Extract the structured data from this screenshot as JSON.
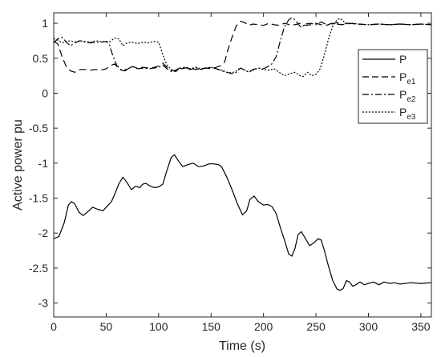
{
  "chart_data": {
    "type": "line",
    "xlabel": "Time (s)",
    "ylabel": "Active power pu",
    "xlim": [
      0,
      360
    ],
    "ylim": [
      -3.2,
      1.15
    ],
    "x_ticks": [
      0,
      50,
      100,
      150,
      200,
      250,
      300,
      350
    ],
    "y_ticks": [
      1,
      0.5,
      0,
      -0.5,
      -1,
      -1.5,
      -2,
      -2.5,
      -3
    ],
    "x_tick_labels": [
      "0",
      "50",
      "100",
      "150",
      "200",
      "250",
      "300",
      "350"
    ],
    "y_tick_labels": [
      "1",
      "0.5",
      "0",
      "-0.5",
      "-1",
      "-1.5",
      "-2",
      "-2.5",
      "-3"
    ],
    "grid": false,
    "legend_position": "top-right",
    "series": [
      {
        "name": "P",
        "style": "solid",
        "color": "#000000",
        "points": [
          [
            0,
            -2.08
          ],
          [
            5,
            -2.05
          ],
          [
            10,
            -1.85
          ],
          [
            14,
            -1.6
          ],
          [
            17,
            -1.55
          ],
          [
            20,
            -1.58
          ],
          [
            24,
            -1.7
          ],
          [
            28,
            -1.75
          ],
          [
            32,
            -1.7
          ],
          [
            37,
            -1.63
          ],
          [
            42,
            -1.66
          ],
          [
            47,
            -1.68
          ],
          [
            52,
            -1.6
          ],
          [
            55,
            -1.55
          ],
          [
            58,
            -1.45
          ],
          [
            62,
            -1.3
          ],
          [
            66,
            -1.2
          ],
          [
            70,
            -1.28
          ],
          [
            74,
            -1.38
          ],
          [
            78,
            -1.33
          ],
          [
            82,
            -1.35
          ],
          [
            85,
            -1.3
          ],
          [
            88,
            -1.29
          ],
          [
            92,
            -1.33
          ],
          [
            96,
            -1.35
          ],
          [
            100,
            -1.34
          ],
          [
            104,
            -1.3
          ],
          [
            108,
            -1.1
          ],
          [
            112,
            -0.92
          ],
          [
            115,
            -0.88
          ],
          [
            119,
            -0.97
          ],
          [
            123,
            -1.05
          ],
          [
            128,
            -1.02
          ],
          [
            133,
            -1.0
          ],
          [
            138,
            -1.05
          ],
          [
            143,
            -1.04
          ],
          [
            148,
            -1.01
          ],
          [
            152,
            -1.01
          ],
          [
            157,
            -1.02
          ],
          [
            160,
            -1.05
          ],
          [
            165,
            -1.2
          ],
          [
            170,
            -1.38
          ],
          [
            175,
            -1.58
          ],
          [
            180,
            -1.74
          ],
          [
            184,
            -1.68
          ],
          [
            187,
            -1.52
          ],
          [
            191,
            -1.47
          ],
          [
            195,
            -1.55
          ],
          [
            200,
            -1.6
          ],
          [
            204,
            -1.59
          ],
          [
            208,
            -1.62
          ],
          [
            212,
            -1.72
          ],
          [
            216,
            -1.92
          ],
          [
            220,
            -2.1
          ],
          [
            224,
            -2.3
          ],
          [
            227,
            -2.33
          ],
          [
            230,
            -2.22
          ],
          [
            233,
            -2.02
          ],
          [
            236,
            -1.98
          ],
          [
            240,
            -2.08
          ],
          [
            244,
            -2.18
          ],
          [
            248,
            -2.14
          ],
          [
            252,
            -2.08
          ],
          [
            255,
            -2.1
          ],
          [
            258,
            -2.25
          ],
          [
            262,
            -2.48
          ],
          [
            266,
            -2.68
          ],
          [
            270,
            -2.8
          ],
          [
            273,
            -2.82
          ],
          [
            276,
            -2.79
          ],
          [
            279,
            -2.68
          ],
          [
            282,
            -2.7
          ],
          [
            285,
            -2.76
          ],
          [
            288,
            -2.74
          ],
          [
            292,
            -2.7
          ],
          [
            296,
            -2.74
          ],
          [
            300,
            -2.72
          ],
          [
            305,
            -2.7
          ],
          [
            310,
            -2.74
          ],
          [
            315,
            -2.7
          ],
          [
            320,
            -2.72
          ],
          [
            325,
            -2.71
          ],
          [
            330,
            -2.73
          ],
          [
            340,
            -2.71
          ],
          [
            350,
            -2.72
          ],
          [
            360,
            -2.71
          ]
        ]
      },
      {
        "name": "Pe1",
        "style": "dashed",
        "color": "#000000",
        "points": [
          [
            0,
            0.75
          ],
          [
            4,
            0.7
          ],
          [
            8,
            0.52
          ],
          [
            12,
            0.38
          ],
          [
            16,
            0.32
          ],
          [
            20,
            0.3
          ],
          [
            25,
            0.34
          ],
          [
            30,
            0.34
          ],
          [
            35,
            0.33
          ],
          [
            40,
            0.34
          ],
          [
            45,
            0.33
          ],
          [
            50,
            0.35
          ],
          [
            55,
            0.4
          ],
          [
            58,
            0.42
          ],
          [
            62,
            0.35
          ],
          [
            66,
            0.32
          ],
          [
            70,
            0.35
          ],
          [
            75,
            0.38
          ],
          [
            80,
            0.36
          ],
          [
            85,
            0.37
          ],
          [
            90,
            0.36
          ],
          [
            96,
            0.37
          ],
          [
            100,
            0.39
          ],
          [
            104,
            0.43
          ],
          [
            108,
            0.37
          ],
          [
            112,
            0.33
          ],
          [
            116,
            0.31
          ],
          [
            120,
            0.34
          ],
          [
            125,
            0.36
          ],
          [
            130,
            0.37
          ],
          [
            135,
            0.34
          ],
          [
            140,
            0.35
          ],
          [
            145,
            0.36
          ],
          [
            150,
            0.35
          ],
          [
            155,
            0.37
          ],
          [
            160,
            0.4
          ],
          [
            163,
            0.45
          ],
          [
            166,
            0.62
          ],
          [
            170,
            0.8
          ],
          [
            174,
            0.96
          ],
          [
            178,
            1.03
          ],
          [
            182,
            1.01
          ],
          [
            186,
            0.97
          ],
          [
            190,
            0.99
          ],
          [
            195,
            0.98
          ],
          [
            200,
            0.97
          ],
          [
            205,
            1.0
          ],
          [
            210,
            0.98
          ],
          [
            215,
            0.97
          ],
          [
            220,
            1.0
          ],
          [
            225,
            0.98
          ],
          [
            230,
            0.98
          ],
          [
            235,
            1.0
          ],
          [
            240,
            0.97
          ],
          [
            245,
            0.98
          ],
          [
            250,
            1.0
          ],
          [
            255,
            0.98
          ],
          [
            260,
            0.97
          ],
          [
            265,
            1.0
          ],
          [
            270,
            0.99
          ],
          [
            275,
            0.98
          ],
          [
            280,
            1.0
          ],
          [
            290,
            0.99
          ],
          [
            300,
            0.98
          ],
          [
            310,
            0.99
          ],
          [
            320,
            0.98
          ],
          [
            330,
            0.99
          ],
          [
            340,
            0.98
          ],
          [
            350,
            0.99
          ],
          [
            360,
            0.98
          ]
        ]
      },
      {
        "name": "Pe2",
        "style": "dashdot",
        "color": "#000000",
        "points": [
          [
            0,
            0.72
          ],
          [
            4,
            0.78
          ],
          [
            8,
            0.8
          ],
          [
            12,
            0.73
          ],
          [
            16,
            0.68
          ],
          [
            20,
            0.72
          ],
          [
            25,
            0.75
          ],
          [
            30,
            0.73
          ],
          [
            35,
            0.72
          ],
          [
            40,
            0.73
          ],
          [
            45,
            0.73
          ],
          [
            50,
            0.74
          ],
          [
            53,
            0.7
          ],
          [
            56,
            0.55
          ],
          [
            60,
            0.4
          ],
          [
            64,
            0.34
          ],
          [
            68,
            0.32
          ],
          [
            72,
            0.36
          ],
          [
            76,
            0.38
          ],
          [
            80,
            0.35
          ],
          [
            86,
            0.36
          ],
          [
            90,
            0.35
          ],
          [
            96,
            0.36
          ],
          [
            100,
            0.37
          ],
          [
            104,
            0.4
          ],
          [
            108,
            0.35
          ],
          [
            112,
            0.31
          ],
          [
            116,
            0.33
          ],
          [
            120,
            0.36
          ],
          [
            125,
            0.37
          ],
          [
            130,
            0.34
          ],
          [
            136,
            0.36
          ],
          [
            140,
            0.34
          ],
          [
            145,
            0.36
          ],
          [
            150,
            0.37
          ],
          [
            155,
            0.35
          ],
          [
            160,
            0.32
          ],
          [
            165,
            0.3
          ],
          [
            170,
            0.28
          ],
          [
            174,
            0.3
          ],
          [
            178,
            0.36
          ],
          [
            182,
            0.33
          ],
          [
            186,
            0.3
          ],
          [
            190,
            0.34
          ],
          [
            195,
            0.36
          ],
          [
            200,
            0.35
          ],
          [
            204,
            0.38
          ],
          [
            208,
            0.42
          ],
          [
            212,
            0.52
          ],
          [
            216,
            0.75
          ],
          [
            220,
            0.95
          ],
          [
            224,
            1.05
          ],
          [
            227,
            1.08
          ],
          [
            230,
            1.05
          ],
          [
            233,
            0.99
          ],
          [
            236,
            0.94
          ],
          [
            240,
            0.99
          ],
          [
            245,
            1.0
          ],
          [
            250,
            0.98
          ],
          [
            255,
            1.02
          ],
          [
            260,
            0.98
          ],
          [
            265,
            0.99
          ],
          [
            270,
            1.01
          ],
          [
            275,
            0.98
          ],
          [
            280,
            1.0
          ],
          [
            290,
            0.99
          ],
          [
            300,
            0.98
          ],
          [
            310,
            0.99
          ],
          [
            320,
            0.98
          ],
          [
            330,
            0.99
          ],
          [
            340,
            0.98
          ],
          [
            350,
            0.99
          ],
          [
            360,
            0.98
          ]
        ]
      },
      {
        "name": "Pe3",
        "style": "dotted",
        "color": "#000000",
        "points": [
          [
            0,
            0.78
          ],
          [
            4,
            0.76
          ],
          [
            8,
            0.72
          ],
          [
            12,
            0.74
          ],
          [
            16,
            0.75
          ],
          [
            20,
            0.73
          ],
          [
            25,
            0.75
          ],
          [
            30,
            0.74
          ],
          [
            35,
            0.73
          ],
          [
            40,
            0.75
          ],
          [
            45,
            0.74
          ],
          [
            50,
            0.74
          ],
          [
            54,
            0.74
          ],
          [
            58,
            0.79
          ],
          [
            62,
            0.78
          ],
          [
            66,
            0.68
          ],
          [
            70,
            0.72
          ],
          [
            74,
            0.73
          ],
          [
            80,
            0.71
          ],
          [
            86,
            0.73
          ],
          [
            90,
            0.72
          ],
          [
            95,
            0.74
          ],
          [
            100,
            0.73
          ],
          [
            104,
            0.55
          ],
          [
            108,
            0.4
          ],
          [
            112,
            0.34
          ],
          [
            116,
            0.32
          ],
          [
            120,
            0.35
          ],
          [
            125,
            0.37
          ],
          [
            130,
            0.35
          ],
          [
            136,
            0.37
          ],
          [
            140,
            0.35
          ],
          [
            145,
            0.36
          ],
          [
            150,
            0.37
          ],
          [
            155,
            0.35
          ],
          [
            160,
            0.33
          ],
          [
            165,
            0.3
          ],
          [
            170,
            0.29
          ],
          [
            174,
            0.32
          ],
          [
            178,
            0.36
          ],
          [
            182,
            0.33
          ],
          [
            186,
            0.3
          ],
          [
            190,
            0.33
          ],
          [
            195,
            0.36
          ],
          [
            200,
            0.34
          ],
          [
            205,
            0.33
          ],
          [
            210,
            0.35
          ],
          [
            215,
            0.3
          ],
          [
            220,
            0.25
          ],
          [
            225,
            0.28
          ],
          [
            230,
            0.3
          ],
          [
            235,
            0.25
          ],
          [
            238,
            0.24
          ],
          [
            242,
            0.3
          ],
          [
            246,
            0.25
          ],
          [
            250,
            0.27
          ],
          [
            254,
            0.35
          ],
          [
            258,
            0.55
          ],
          [
            262,
            0.78
          ],
          [
            266,
            0.96
          ],
          [
            270,
            1.05
          ],
          [
            273,
            1.07
          ],
          [
            276,
            1.03
          ],
          [
            280,
            0.99
          ],
          [
            285,
            1.0
          ],
          [
            290,
            0.99
          ],
          [
            300,
            0.98
          ],
          [
            310,
            0.99
          ],
          [
            320,
            0.98
          ],
          [
            330,
            0.99
          ],
          [
            340,
            0.98
          ],
          [
            350,
            0.99
          ],
          [
            360,
            0.98
          ]
        ]
      }
    ]
  }
}
